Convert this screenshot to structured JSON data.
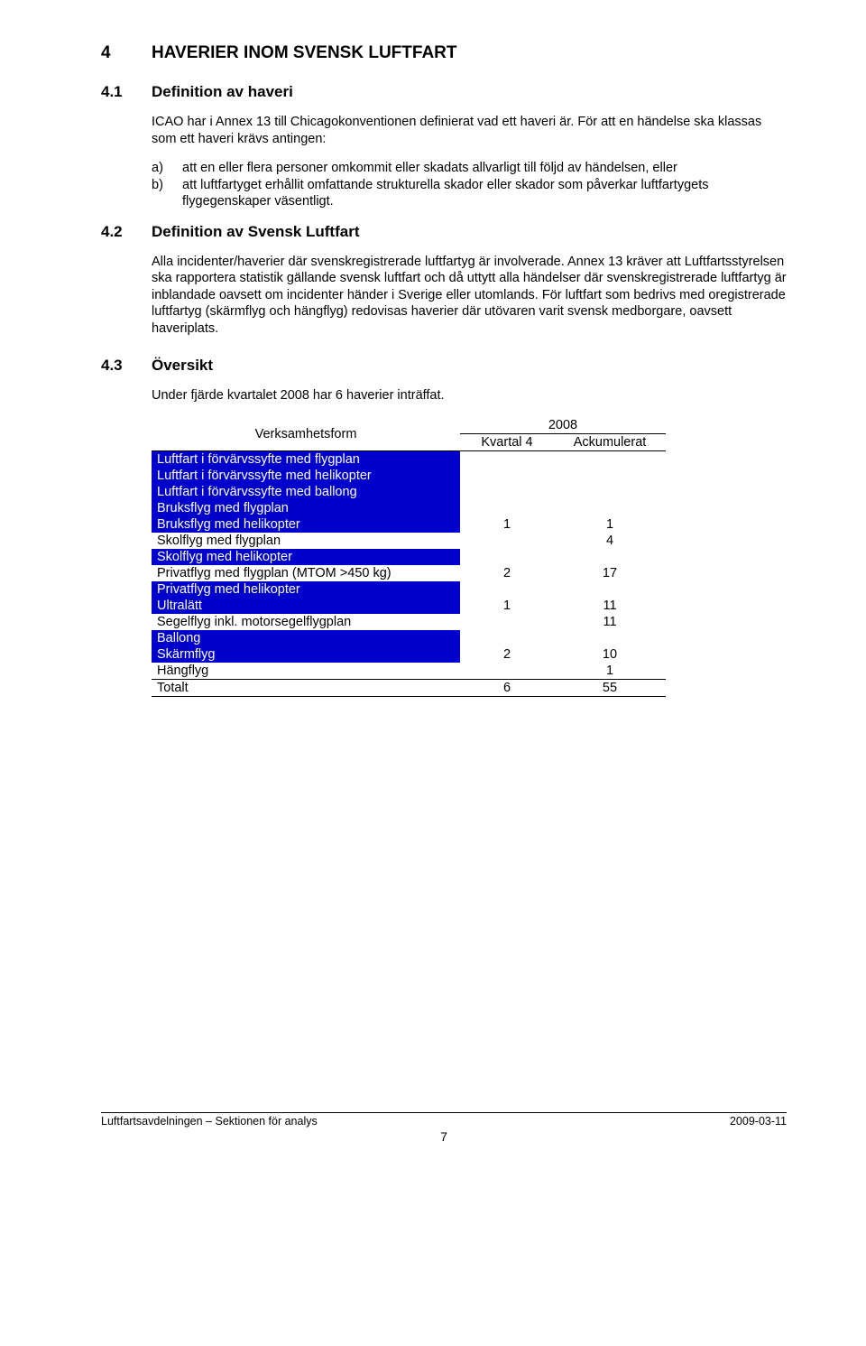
{
  "section4": {
    "num": "4",
    "title": "HAVERIER INOM SVENSK LUFTFART"
  },
  "section41": {
    "num": "4.1",
    "title": "Definition av haveri",
    "intro": "ICAO har i Annex 13 till Chicagokonventionen definierat vad ett haveri är. För att en händelse ska klassas som ett haveri krävs antingen:",
    "item_a_marker": "a)",
    "item_a": "att en eller flera personer omkommit eller skadats allvarligt till följd av händelsen, eller",
    "item_b_marker": "b)",
    "item_b": "att luftfartyget erhållit omfattande strukturella skador eller skador som påverkar luftfartygets flygegenskaper väsentligt."
  },
  "section42": {
    "num": "4.2",
    "title": "Definition av Svensk Luftfart",
    "para": "Alla incidenter/haverier där svenskregistrerade luftfartyg är involverade. Annex 13 kräver att Luftfartsstyrelsen ska rapportera statistik gällande svensk luftfart och då uttytt alla händelser där svenskregistrerade luftfartyg är inblandade oavsett om incidenter händer i Sverige eller utomlands. För luftfart som bedrivs med oregistrerade luftfartyg (skärmflyg och hängflyg) redovisas haverier där utövaren varit svensk medborgare, oavsett haveriplats."
  },
  "section43": {
    "num": "4.3",
    "title": "Översikt",
    "intro": "Under fjärde kvartalet 2008 har 6 haverier inträffat."
  },
  "table": {
    "col_label": "Verksamhetsform",
    "year": "2008",
    "col_q": "Kvartal 4",
    "col_a": "Ackumulerat",
    "rows": [
      {
        "label": "Luftfart i förvärvssyfte med flygplan",
        "q": "",
        "a": "",
        "blue": true
      },
      {
        "label": "Luftfart i förvärvssyfte med helikopter",
        "q": "",
        "a": "",
        "blue": true
      },
      {
        "label": "Luftfart i förvärvssyfte med ballong",
        "q": "",
        "a": "",
        "blue": true
      },
      {
        "label": "Bruksflyg med flygplan",
        "q": "",
        "a": "",
        "blue": true
      },
      {
        "label": "Bruksflyg med helikopter",
        "q": "1",
        "a": "1",
        "blue": true
      },
      {
        "label": "Skolflyg med flygplan",
        "q": "",
        "a": "4",
        "blue": false
      },
      {
        "label": "Skolflyg med helikopter",
        "q": "",
        "a": "",
        "blue": true
      },
      {
        "label": "Privatflyg med flygplan (MTOM >450 kg)",
        "q": "2",
        "a": "17",
        "blue": false
      },
      {
        "label": "Privatflyg med helikopter",
        "q": "",
        "a": "",
        "blue": true
      },
      {
        "label": "Ultralätt",
        "q": "1",
        "a": "11",
        "blue": true
      },
      {
        "label": "Segelflyg inkl. motorsegelflygplan",
        "q": "",
        "a": "11",
        "blue": false
      },
      {
        "label": "Ballong",
        "q": "",
        "a": "",
        "blue": true
      },
      {
        "label": "Skärmflyg",
        "q": "2",
        "a": "10",
        "blue": true
      },
      {
        "label": "Hängflyg",
        "q": "",
        "a": "1",
        "blue": false
      }
    ],
    "total_label": "Totalt",
    "total_q": "6",
    "total_a": "55"
  },
  "footer": {
    "left": "Luftfartsavdelningen – Sektionen för analys",
    "right": "2009-03-11",
    "page": "7"
  },
  "colors": {
    "blue": "#0000cc",
    "white": "#ffffff",
    "black": "#000000"
  }
}
